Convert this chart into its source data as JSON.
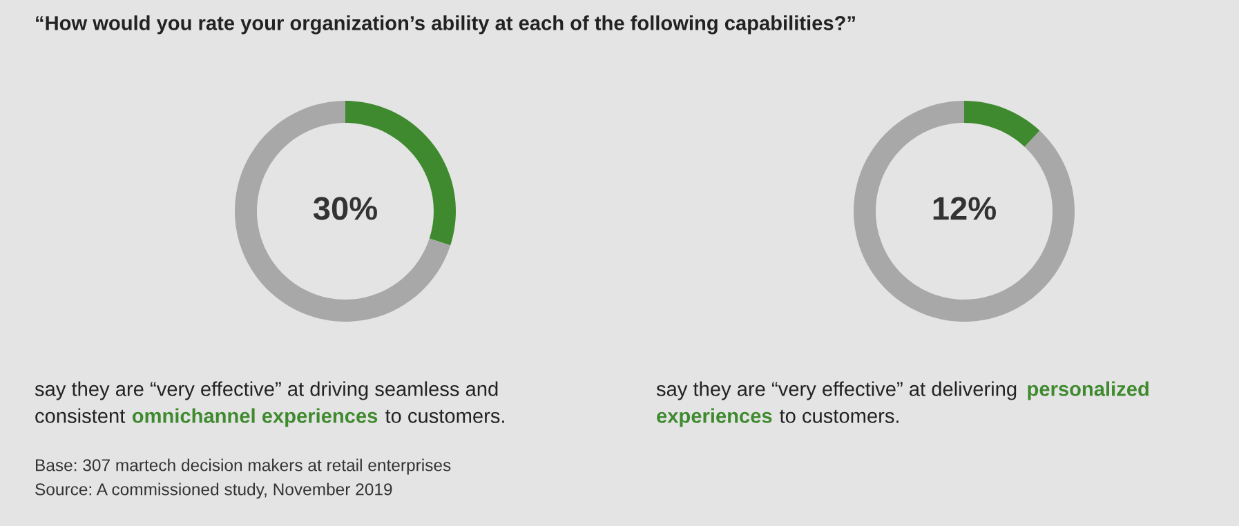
{
  "chart_data": [
    {
      "type": "donut",
      "title": "“How would you rate your organization’s ability at each of the following capabilities?”",
      "categories": [
        null,
        null
      ],
      "values": [
        30,
        70
      ],
      "colors": [
        "#3f8a2e",
        "#a8a8a8"
      ],
      "value_labels": [
        "30%",
        null
      ],
      "annotations": [
        "say they are “very effective” at driving seamless and consistent ",
        "omnichannel experiences",
        " to customers.",
        "Base: 307 martech decision makers at retail enterprises",
        "Source: A commissioned study, November 2019"
      ]
    },
    {
      "type": "donut",
      "categories": [
        null,
        null
      ],
      "values": [
        12,
        88
      ],
      "colors": [
        "#3f8a2e",
        "#a8a8a8"
      ],
      "value_labels": [
        "12%",
        null
      ],
      "annotations": [
        "say they are “very effective” at delivering ",
        "personalized experiences",
        " to customers."
      ]
    }
  ]
}
